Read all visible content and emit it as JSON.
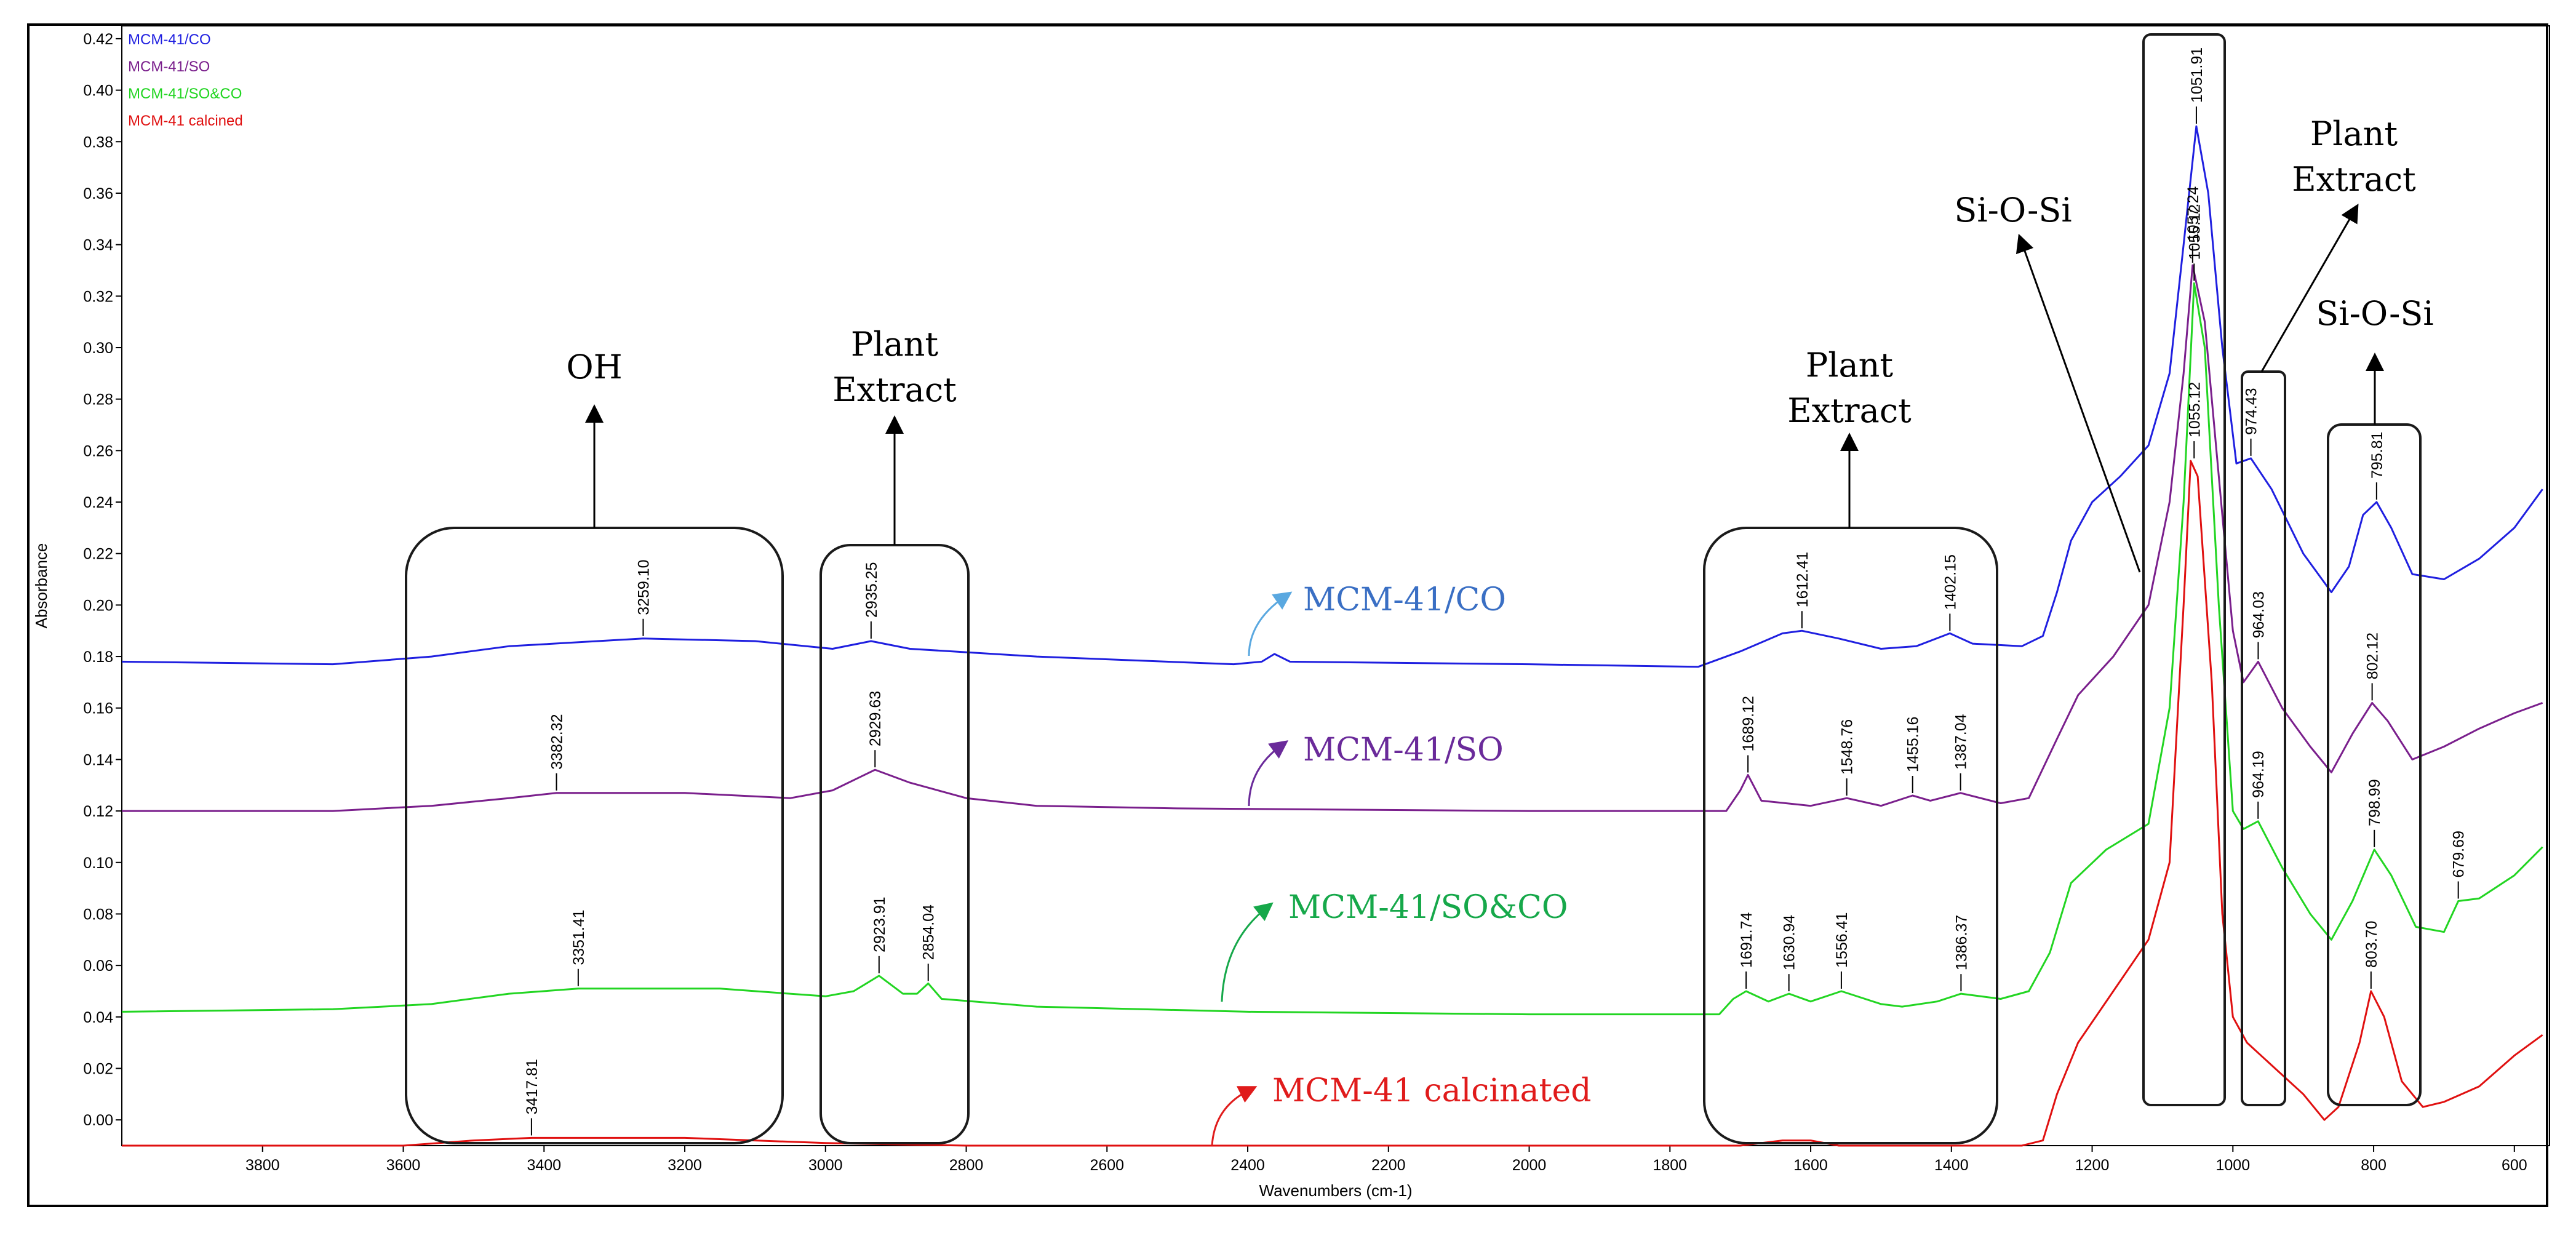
{
  "chart_data": {
    "type": "line",
    "xlabel": "Wavenumbers (cm-1)",
    "ylabel": "Absorbance",
    "xlim": [
      4000,
      550
    ],
    "ylim": [
      -0.01,
      0.425
    ],
    "x_ticks": [
      3800,
      3600,
      3400,
      3200,
      3000,
      2800,
      2600,
      2400,
      2200,
      2000,
      1800,
      1600,
      1400,
      1200,
      1000,
      800,
      600
    ],
    "y_ticks": [
      "0.00",
      "0.02",
      "0.04",
      "0.06",
      "0.08",
      "0.10",
      "0.12",
      "0.14",
      "0.16",
      "0.18",
      "0.20",
      "0.22",
      "0.24",
      "0.26",
      "0.28",
      "0.30",
      "0.32",
      "0.34",
      "0.36",
      "0.38",
      "0.40",
      "0.42"
    ],
    "legend": [
      "MCM-41/CO",
      "MCM-41/SO",
      "MCM-41/SO&CO",
      "MCM-41 calcined"
    ],
    "series": [
      {
        "name": "MCM-41/CO",
        "color": "#1f1fe0",
        "label": "MCM-41/CO",
        "label_color": "#3a6fc4",
        "points": [
          [
            4000,
            0.178
          ],
          [
            3700,
            0.177
          ],
          [
            3560,
            0.18
          ],
          [
            3450,
            0.184
          ],
          [
            3259.1,
            0.187
          ],
          [
            3100,
            0.186
          ],
          [
            2990,
            0.183
          ],
          [
            2935.25,
            0.186
          ],
          [
            2880,
            0.183
          ],
          [
            2700,
            0.18
          ],
          [
            2420,
            0.177
          ],
          [
            2380,
            0.178
          ],
          [
            2362,
            0.181
          ],
          [
            2340,
            0.178
          ],
          [
            2000,
            0.177
          ],
          [
            1760,
            0.176
          ],
          [
            1700,
            0.182
          ],
          [
            1640,
            0.189
          ],
          [
            1612.41,
            0.19
          ],
          [
            1560,
            0.187
          ],
          [
            1500,
            0.183
          ],
          [
            1450,
            0.184
          ],
          [
            1402.15,
            0.189
          ],
          [
            1370,
            0.185
          ],
          [
            1300,
            0.184
          ],
          [
            1270,
            0.188
          ],
          [
            1250,
            0.205
          ],
          [
            1230,
            0.225
          ],
          [
            1200,
            0.24
          ],
          [
            1160,
            0.25
          ],
          [
            1120,
            0.262
          ],
          [
            1090,
            0.29
          ],
          [
            1070,
            0.34
          ],
          [
            1051.91,
            0.386
          ],
          [
            1035,
            0.36
          ],
          [
            1015,
            0.3
          ],
          [
            995,
            0.255
          ],
          [
            974.43,
            0.257
          ],
          [
            945,
            0.245
          ],
          [
            900,
            0.22
          ],
          [
            860,
            0.205
          ],
          [
            835,
            0.215
          ],
          [
            815,
            0.235
          ],
          [
            795.81,
            0.24
          ],
          [
            775,
            0.23
          ],
          [
            745,
            0.212
          ],
          [
            700,
            0.21
          ],
          [
            650,
            0.218
          ],
          [
            600,
            0.23
          ],
          [
            560,
            0.245
          ]
        ],
        "peaks": [
          [
            "3259.10",
            3259.1,
            0.187
          ],
          [
            "2935.25",
            2935.25,
            0.186
          ],
          [
            "1612.41",
            1612.41,
            0.19
          ],
          [
            "1402.15",
            1402.15,
            0.189
          ],
          [
            "1051.91",
            1051.91,
            0.386
          ],
          [
            "974.43",
            974.43,
            0.257
          ],
          [
            "795.81",
            795.81,
            0.24
          ]
        ]
      },
      {
        "name": "MCM-41/SO",
        "color": "#7a1f8c",
        "label": "MCM-41/SO",
        "label_color": "#6a2a9a",
        "points": [
          [
            4000,
            0.12
          ],
          [
            3700,
            0.12
          ],
          [
            3560,
            0.122
          ],
          [
            3450,
            0.125
          ],
          [
            3382.32,
            0.127
          ],
          [
            3200,
            0.127
          ],
          [
            3050,
            0.125
          ],
          [
            2990,
            0.128
          ],
          [
            2929.63,
            0.136
          ],
          [
            2880,
            0.131
          ],
          [
            2800,
            0.125
          ],
          [
            2700,
            0.122
          ],
          [
            2500,
            0.121
          ],
          [
            2000,
            0.12
          ],
          [
            1720,
            0.12
          ],
          [
            1700,
            0.128
          ],
          [
            1689.12,
            0.134
          ],
          [
            1670,
            0.124
          ],
          [
            1600,
            0.122
          ],
          [
            1548.76,
            0.125
          ],
          [
            1500,
            0.122
          ],
          [
            1455.16,
            0.126
          ],
          [
            1430,
            0.124
          ],
          [
            1387.04,
            0.127
          ],
          [
            1330,
            0.123
          ],
          [
            1290,
            0.125
          ],
          [
            1250,
            0.148
          ],
          [
            1220,
            0.165
          ],
          [
            1170,
            0.18
          ],
          [
            1120,
            0.2
          ],
          [
            1090,
            0.24
          ],
          [
            1070,
            0.29
          ],
          [
            1057.24,
            0.332
          ],
          [
            1040,
            0.31
          ],
          [
            1020,
            0.25
          ],
          [
            1000,
            0.19
          ],
          [
            985,
            0.17
          ],
          [
            964.03,
            0.178
          ],
          [
            930,
            0.16
          ],
          [
            890,
            0.145
          ],
          [
            860,
            0.135
          ],
          [
            830,
            0.15
          ],
          [
            802.12,
            0.162
          ],
          [
            780,
            0.155
          ],
          [
            745,
            0.14
          ],
          [
            700,
            0.145
          ],
          [
            650,
            0.152
          ],
          [
            600,
            0.158
          ],
          [
            560,
            0.162
          ]
        ],
        "peaks": [
          [
            "3382.32",
            3382.32,
            0.127
          ],
          [
            "2929.63",
            2929.63,
            0.136
          ],
          [
            "1689.12",
            1689.12,
            0.134
          ],
          [
            "1548.76",
            1548.76,
            0.125
          ],
          [
            "1455.16",
            1455.16,
            0.126
          ],
          [
            "1387.04",
            1387.04,
            0.127
          ],
          [
            "1057.24",
            1057.24,
            0.332
          ],
          [
            "964.03",
            964.03,
            0.178
          ],
          [
            "802.12",
            802.12,
            0.162
          ]
        ]
      },
      {
        "name": "MCM-41/SO&CO",
        "color": "#22d522",
        "label": "MCM-41/SO&CO",
        "label_color": "#16a84a",
        "points": [
          [
            4000,
            0.042
          ],
          [
            3700,
            0.043
          ],
          [
            3560,
            0.045
          ],
          [
            3450,
            0.049
          ],
          [
            3351.41,
            0.051
          ],
          [
            3150,
            0.051
          ],
          [
            3000,
            0.048
          ],
          [
            2960,
            0.05
          ],
          [
            2923.91,
            0.056
          ],
          [
            2890,
            0.049
          ],
          [
            2870,
            0.049
          ],
          [
            2854.04,
            0.053
          ],
          [
            2835,
            0.047
          ],
          [
            2700,
            0.044
          ],
          [
            2400,
            0.042
          ],
          [
            2000,
            0.041
          ],
          [
            1730,
            0.041
          ],
          [
            1710,
            0.047
          ],
          [
            1691.74,
            0.05
          ],
          [
            1660,
            0.046
          ],
          [
            1630.94,
            0.049
          ],
          [
            1600,
            0.046
          ],
          [
            1556.41,
            0.05
          ],
          [
            1500,
            0.045
          ],
          [
            1470,
            0.044
          ],
          [
            1420,
            0.046
          ],
          [
            1386.37,
            0.049
          ],
          [
            1330,
            0.047
          ],
          [
            1290,
            0.05
          ],
          [
            1260,
            0.065
          ],
          [
            1230,
            0.092
          ],
          [
            1180,
            0.105
          ],
          [
            1120,
            0.115
          ],
          [
            1090,
            0.16
          ],
          [
            1070,
            0.24
          ],
          [
            1055.12,
            0.325
          ],
          [
            1040,
            0.3
          ],
          [
            1020,
            0.2
          ],
          [
            1000,
            0.12
          ],
          [
            985,
            0.113
          ],
          [
            964.19,
            0.116
          ],
          [
            930,
            0.098
          ],
          [
            890,
            0.08
          ],
          [
            860,
            0.07
          ],
          [
            830,
            0.085
          ],
          [
            798.99,
            0.105
          ],
          [
            775,
            0.095
          ],
          [
            740,
            0.075
          ],
          [
            700,
            0.073
          ],
          [
            679.69,
            0.085
          ],
          [
            650,
            0.086
          ],
          [
            600,
            0.095
          ],
          [
            560,
            0.106
          ]
        ],
        "peaks": [
          [
            "3351.41",
            3351.41,
            0.051
          ],
          [
            "2923.91",
            2923.91,
            0.056
          ],
          [
            "2854.04",
            2854.04,
            0.053
          ],
          [
            "1691.74",
            1691.74,
            0.05
          ],
          [
            "1630.94",
            1630.94,
            0.049
          ],
          [
            "1556.41",
            1556.41,
            0.05
          ],
          [
            "1386.37",
            1386.37,
            0.049
          ],
          [
            "1055.12",
            1055.12,
            0.325
          ],
          [
            "964.19",
            964.19,
            0.116
          ],
          [
            "798.99",
            798.99,
            0.105
          ],
          [
            "679.69",
            679.69,
            0.085
          ]
        ]
      },
      {
        "name": "MCM-41 calcined",
        "color": "#e01010",
        "label": "MCM-41 calcinated",
        "label_color": "#e01b1b",
        "points": [
          [
            4000,
            -0.01
          ],
          [
            3600,
            -0.01
          ],
          [
            3500,
            -0.008
          ],
          [
            3417.81,
            -0.007
          ],
          [
            3200,
            -0.007
          ],
          [
            3000,
            -0.009
          ],
          [
            2800,
            -0.01
          ],
          [
            2000,
            -0.01
          ],
          [
            1700,
            -0.01
          ],
          [
            1640,
            -0.008
          ],
          [
            1600,
            -0.008
          ],
          [
            1560,
            -0.01
          ],
          [
            1300,
            -0.01
          ],
          [
            1270,
            -0.008
          ],
          [
            1250,
            0.01
          ],
          [
            1220,
            0.03
          ],
          [
            1170,
            0.05
          ],
          [
            1120,
            0.07
          ],
          [
            1090,
            0.1
          ],
          [
            1070,
            0.2
          ],
          [
            1060,
            0.256
          ],
          [
            1050,
            0.25
          ],
          [
            1030,
            0.17
          ],
          [
            1015,
            0.08
          ],
          [
            1000,
            0.04
          ],
          [
            980,
            0.03
          ],
          [
            940,
            0.02
          ],
          [
            900,
            0.01
          ],
          [
            870,
            0.0
          ],
          [
            850,
            0.005
          ],
          [
            820,
            0.03
          ],
          [
            803.7,
            0.05
          ],
          [
            785,
            0.04
          ],
          [
            760,
            0.015
          ],
          [
            730,
            0.005
          ],
          [
            700,
            0.007
          ],
          [
            650,
            0.013
          ],
          [
            600,
            0.025
          ],
          [
            560,
            0.033
          ]
        ],
        "peaks": [
          [
            "3417.81",
            3417.81,
            -0.007
          ],
          [
            "1055.12",
            1055.12,
            0.256
          ],
          [
            "803.70",
            803.7,
            0.05
          ]
        ]
      }
    ],
    "annotations": [
      {
        "text": "OH"
      },
      {
        "text": "Plant Extract"
      },
      {
        "text": "Plant Extract"
      },
      {
        "text": "Si-O-Si"
      },
      {
        "text": "Plant Extract"
      },
      {
        "text": "Si-O-Si"
      }
    ]
  }
}
